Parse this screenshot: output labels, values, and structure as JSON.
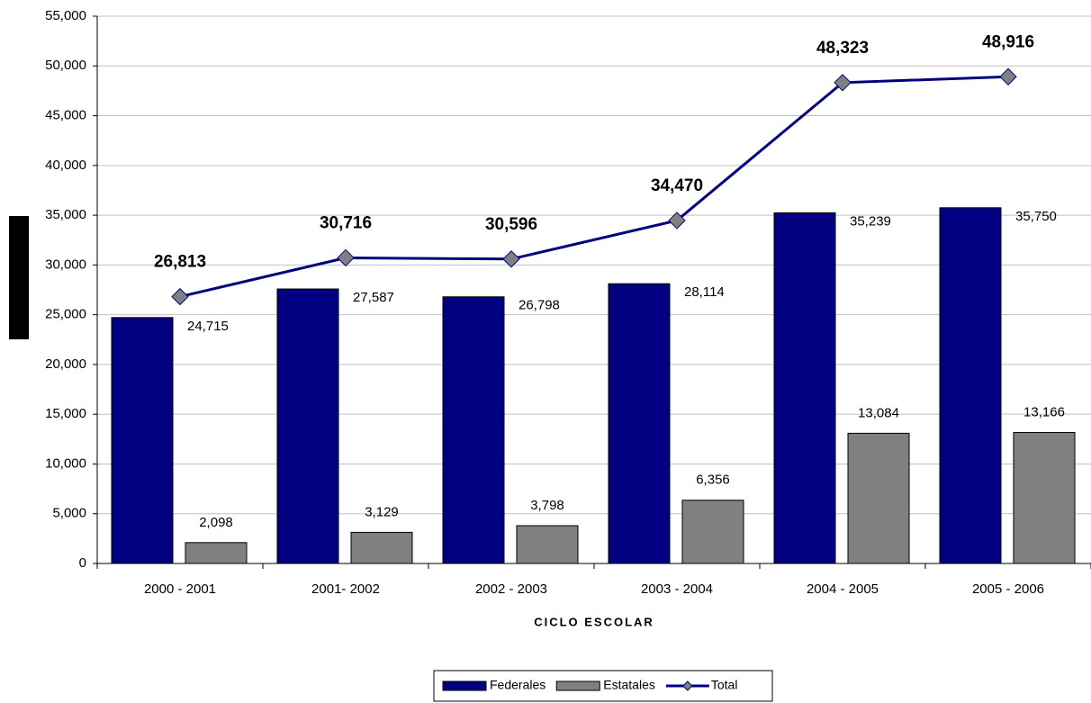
{
  "chart_data": {
    "type": "bar",
    "x_label": "CICLO ESCOLAR",
    "categories": [
      "2000 - 2001",
      "2001- 2002",
      "2002 - 2003",
      "2003 - 2004",
      "2004 - 2005",
      "2005 - 2006"
    ],
    "series": [
      {
        "name": "Federales",
        "color": "#000080",
        "values": [
          24715,
          27587,
          26798,
          28114,
          35239,
          35750
        ],
        "value_labels": [
          "24,715",
          "27,587",
          "26,798",
          "28,114",
          "35,239",
          "35,750"
        ]
      },
      {
        "name": "Estatales",
        "color": "#808080",
        "values": [
          2098,
          3129,
          3798,
          6356,
          13084,
          13166
        ],
        "value_labels": [
          "2,098",
          "3,129",
          "3,798",
          "6,356",
          "13,084",
          "13,166"
        ]
      },
      {
        "name": "Total",
        "type": "line",
        "color": "#000080",
        "marker_color": "#808080",
        "values": [
          26813,
          30716,
          30596,
          34470,
          48323,
          48916
        ],
        "value_labels": [
          "26,813",
          "30,716",
          "30,596",
          "34,470",
          "48,323",
          "48,916"
        ]
      }
    ],
    "ylim": [
      0,
      55000
    ],
    "yticks": [
      0,
      {
        "value": 5000,
        "label": "5,000"
      },
      {
        "value": 10000,
        "label": "10,000"
      },
      {
        "value": 15000,
        "label": "15,000"
      },
      {
        "value": 20000,
        "label": "20,000"
      },
      {
        "value": 25000,
        "label": "25,000"
      },
      {
        "value": 30000,
        "label": "30,000"
      },
      {
        "value": 35000,
        "label": "35,000"
      },
      {
        "value": 40000,
        "label": "40,000"
      },
      {
        "value": 45000,
        "label": "45,000"
      },
      {
        "value": 50000,
        "label": "50,000"
      },
      {
        "value": 55000,
        "label": "55,000"
      }
    ],
    "grid": true,
    "legend": "bottom"
  }
}
